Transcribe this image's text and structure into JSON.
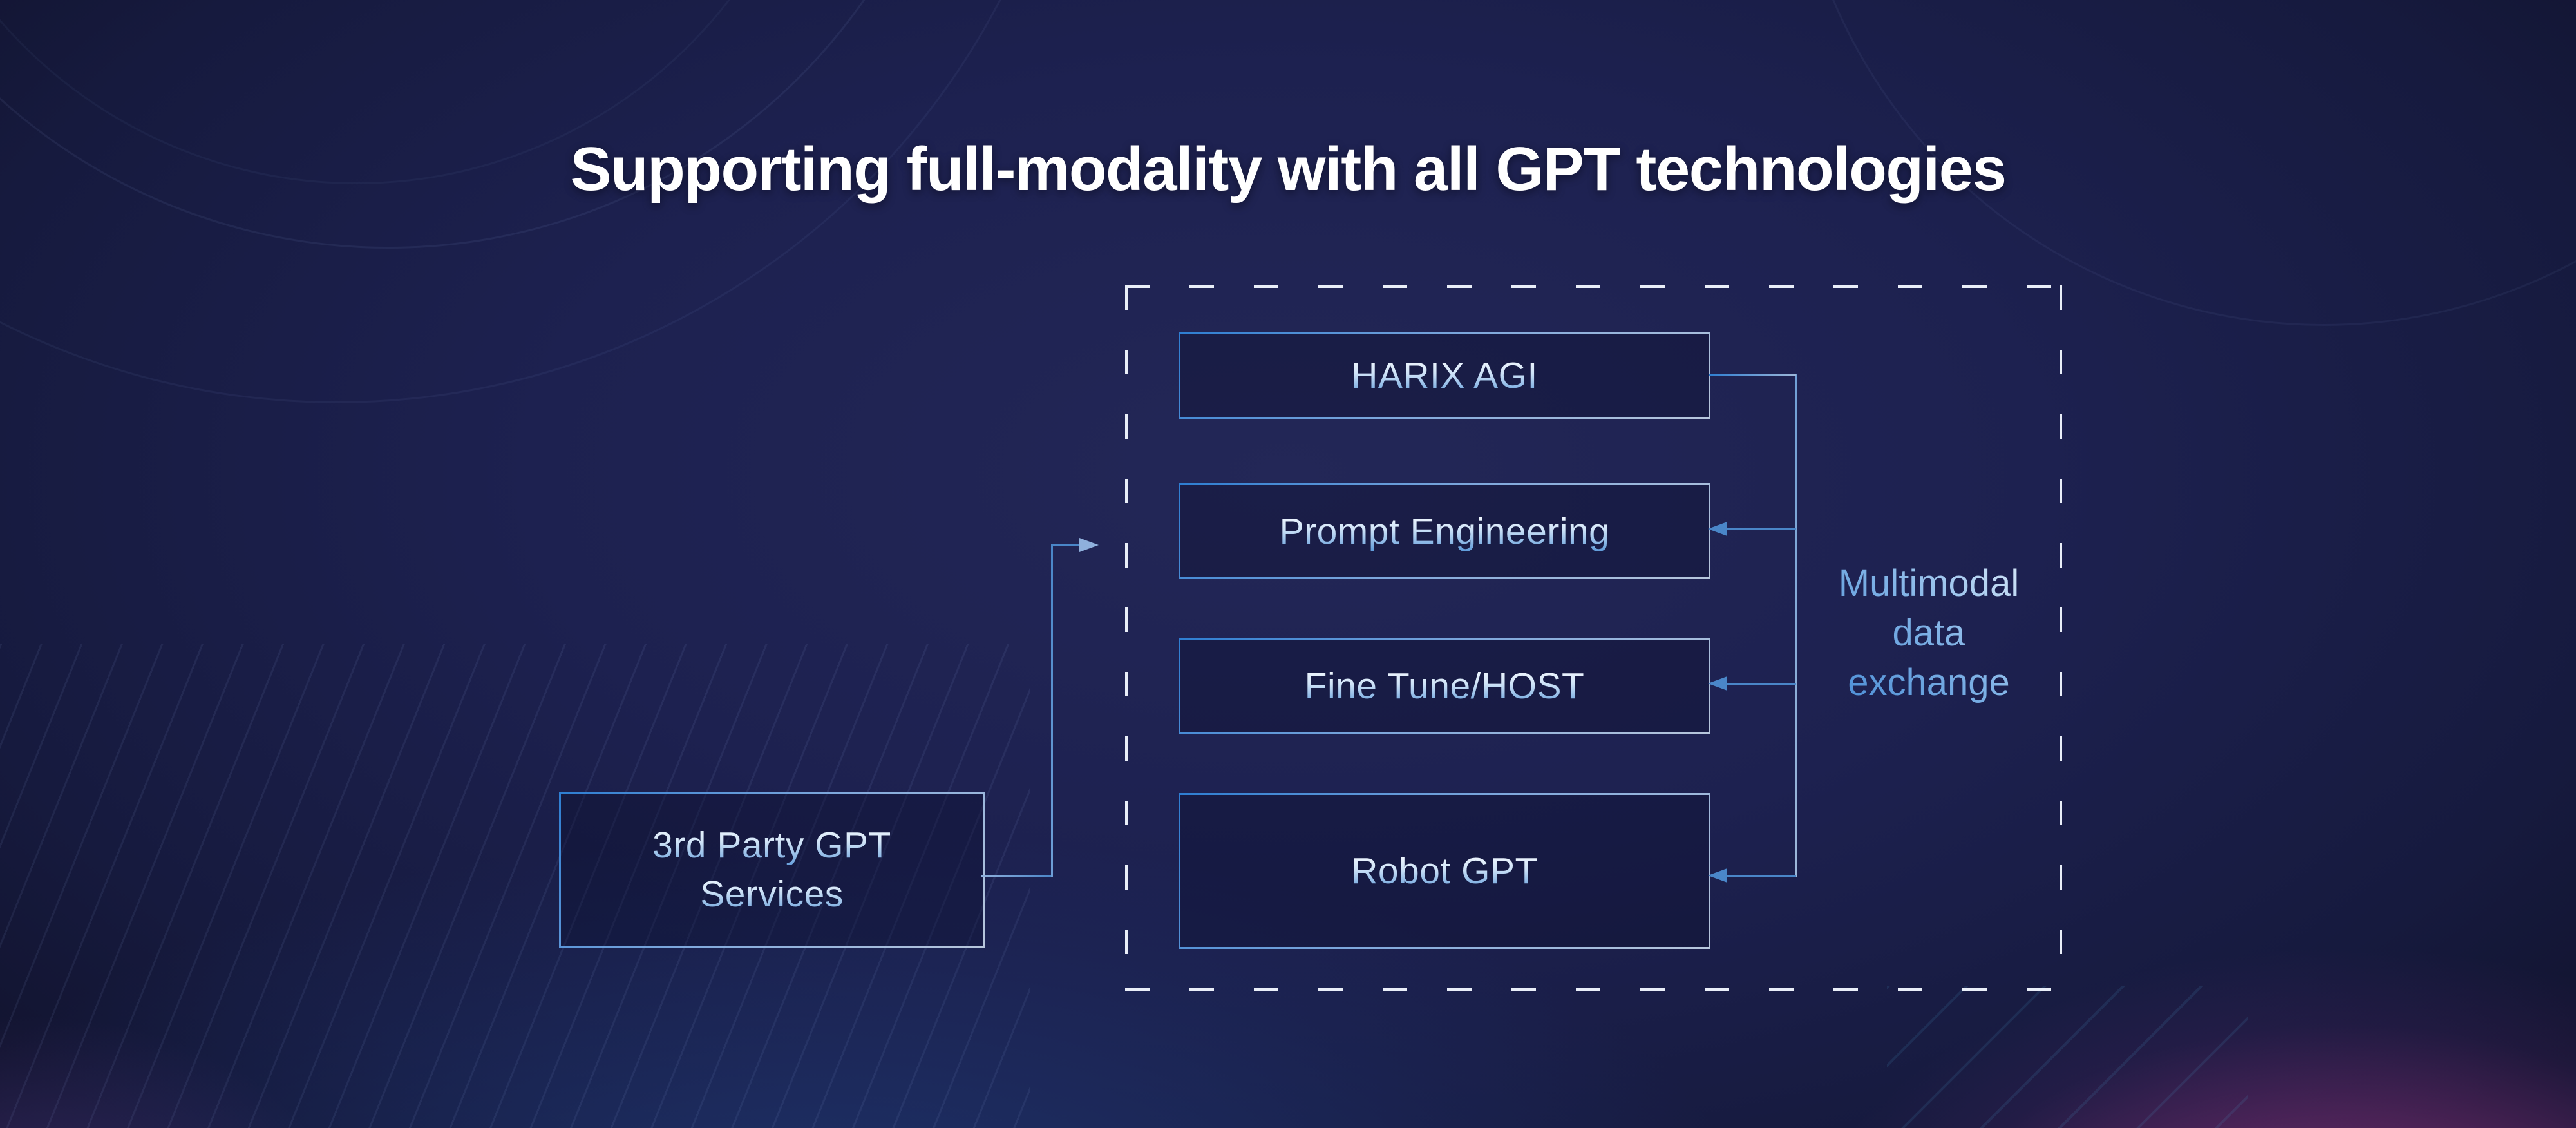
{
  "slide": {
    "title": "Supporting full-modality with all GPT technologies"
  },
  "diagram": {
    "group_boxes": [
      {
        "label": "HARIX AGI"
      },
      {
        "label": "Prompt Engineering"
      },
      {
        "label": "Fine Tune/HOST"
      },
      {
        "label": "Robot GPT"
      }
    ],
    "external_box": {
      "line1": "3rd Party GPT",
      "line2": "Services"
    },
    "exchange_label": {
      "line1": "Multimodal",
      "line2": "data",
      "line3": "exchange"
    }
  },
  "colors": {
    "background_navy": "#1d2150",
    "accent_border_blue": "#2e7ed2",
    "connector_blue": "#4a86c8",
    "pale_line_blue": "#94accf",
    "dash_white": "#e9eef8",
    "magenta_glow": "#c44a9a",
    "title_white": "#ffffff",
    "label_gradient_blue": "#5f9bda"
  }
}
